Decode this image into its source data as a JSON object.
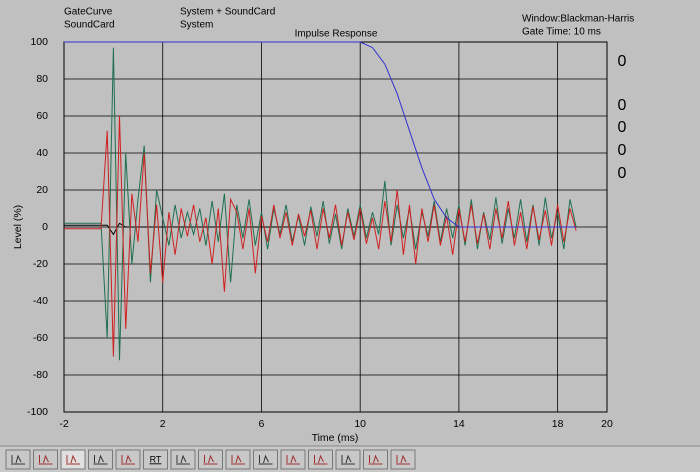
{
  "chart_data": {
    "type": "line",
    "title": "Impulse Response",
    "x_label": "Time (ms)",
    "y_label": "Level (%)",
    "xlim": [
      -2,
      20
    ],
    "ylim": [
      -100,
      100
    ],
    "xticks": [
      -2,
      2,
      6,
      10,
      14,
      18,
      20
    ],
    "yticks": [
      -100,
      -80,
      -60,
      -40,
      -20,
      0,
      20,
      40,
      60,
      80,
      100
    ],
    "grid": true,
    "x": [
      -2,
      -1.75,
      -1.5,
      -1.25,
      -1,
      -0.75,
      -0.5,
      -0.25,
      0,
      0.25,
      0.5,
      0.75,
      1,
      1.25,
      1.5,
      1.75,
      2,
      2.25,
      2.5,
      2.75,
      3,
      3.25,
      3.5,
      3.75,
      4,
      4.25,
      4.5,
      4.75,
      5,
      5.25,
      5.5,
      5.75,
      6,
      6.25,
      6.5,
      6.75,
      7,
      7.25,
      7.5,
      7.75,
      8,
      8.25,
      8.5,
      8.75,
      9,
      9.25,
      9.5,
      9.75,
      10,
      10.25,
      10.5,
      10.75,
      11,
      11.25,
      11.5,
      11.75,
      12,
      12.25,
      12.5,
      12.75,
      13,
      13.25,
      13.5,
      13.75,
      14,
      14.25,
      14.5,
      14.75,
      15,
      15.25,
      15.5,
      15.75,
      16,
      16.25,
      16.5,
      16.75,
      17,
      17.25,
      17.5,
      17.75,
      18,
      18.25,
      18.5,
      18.75
    ],
    "series": [
      {
        "name": "GateCurve",
        "color": "#3030d0",
        "x": [
          -2,
          10,
          10.5,
          11,
          11.5,
          12,
          12.5,
          13,
          13.5,
          14,
          18.75
        ],
        "values": [
          100,
          100,
          97,
          88,
          72,
          52,
          32,
          15,
          5,
          0,
          0
        ]
      },
      {
        "name": "SoundCard",
        "color": "#000000",
        "x": [
          -2,
          -0.25,
          0,
          0.25,
          0.5,
          18.75
        ],
        "values": [
          1,
          1,
          -4,
          2,
          0,
          0
        ]
      },
      {
        "name": "System + SoundCard",
        "color": "#d02020",
        "values": [
          -1,
          -1,
          -1,
          -1,
          -1,
          -1,
          -1,
          52,
          -70,
          60,
          -55,
          18,
          -8,
          40,
          -25,
          12,
          -30,
          8,
          -15,
          10,
          -5,
          12,
          -8,
          5,
          -20,
          10,
          -35,
          15,
          8,
          -12,
          10,
          -25,
          6,
          -8,
          12,
          -6,
          8,
          -10,
          7,
          -5,
          9,
          -12,
          10,
          -6,
          12,
          -10,
          8,
          -7,
          10,
          -9,
          5,
          -12,
          14,
          -8,
          20,
          -15,
          12,
          -20,
          10,
          -8,
          12,
          -10,
          6,
          -15,
          10,
          -8,
          12,
          -9,
          7,
          -12,
          10,
          -6,
          14,
          -10,
          8,
          -12,
          11,
          -7,
          9,
          -10,
          12,
          -8,
          10,
          -2
        ]
      },
      {
        "name": "System",
        "color": "#207050",
        "values": [
          2,
          2,
          2,
          2,
          2,
          2,
          2,
          -60,
          97,
          -72,
          40,
          -20,
          15,
          44,
          -30,
          20,
          5,
          -10,
          12,
          -6,
          8,
          -4,
          10,
          -10,
          14,
          -8,
          18,
          -30,
          12,
          -6,
          15,
          -10,
          8,
          -12,
          10,
          -4,
          12,
          -8,
          6,
          -10,
          11,
          -5,
          14,
          -9,
          7,
          -12,
          10,
          -5,
          12,
          -6,
          8,
          -4,
          25,
          -10,
          12,
          -6,
          10,
          -12,
          8,
          -5,
          14,
          -8,
          10,
          -6,
          12,
          -10,
          15,
          -12,
          8,
          -7,
          16,
          -9,
          10,
          -6,
          15,
          -8,
          12,
          -10,
          16,
          -6,
          8,
          -12,
          15,
          0
        ]
      }
    ],
    "draw_order": [
      1,
      3,
      2,
      0
    ]
  },
  "info": {
    "window": "Window:Blackman-Harris",
    "gate_time": "Gate Time: 10 ms"
  },
  "readouts": [
    {
      "text": "0",
      "color": "#000000"
    },
    {
      "text": "0",
      "color": "#3030d0"
    },
    {
      "text": "0",
      "color": "#000000"
    },
    {
      "text": "0",
      "color": "#d02020"
    },
    {
      "text": "0",
      "color": "#207050"
    }
  ],
  "toolbar": {
    "rt_button": "RT"
  }
}
